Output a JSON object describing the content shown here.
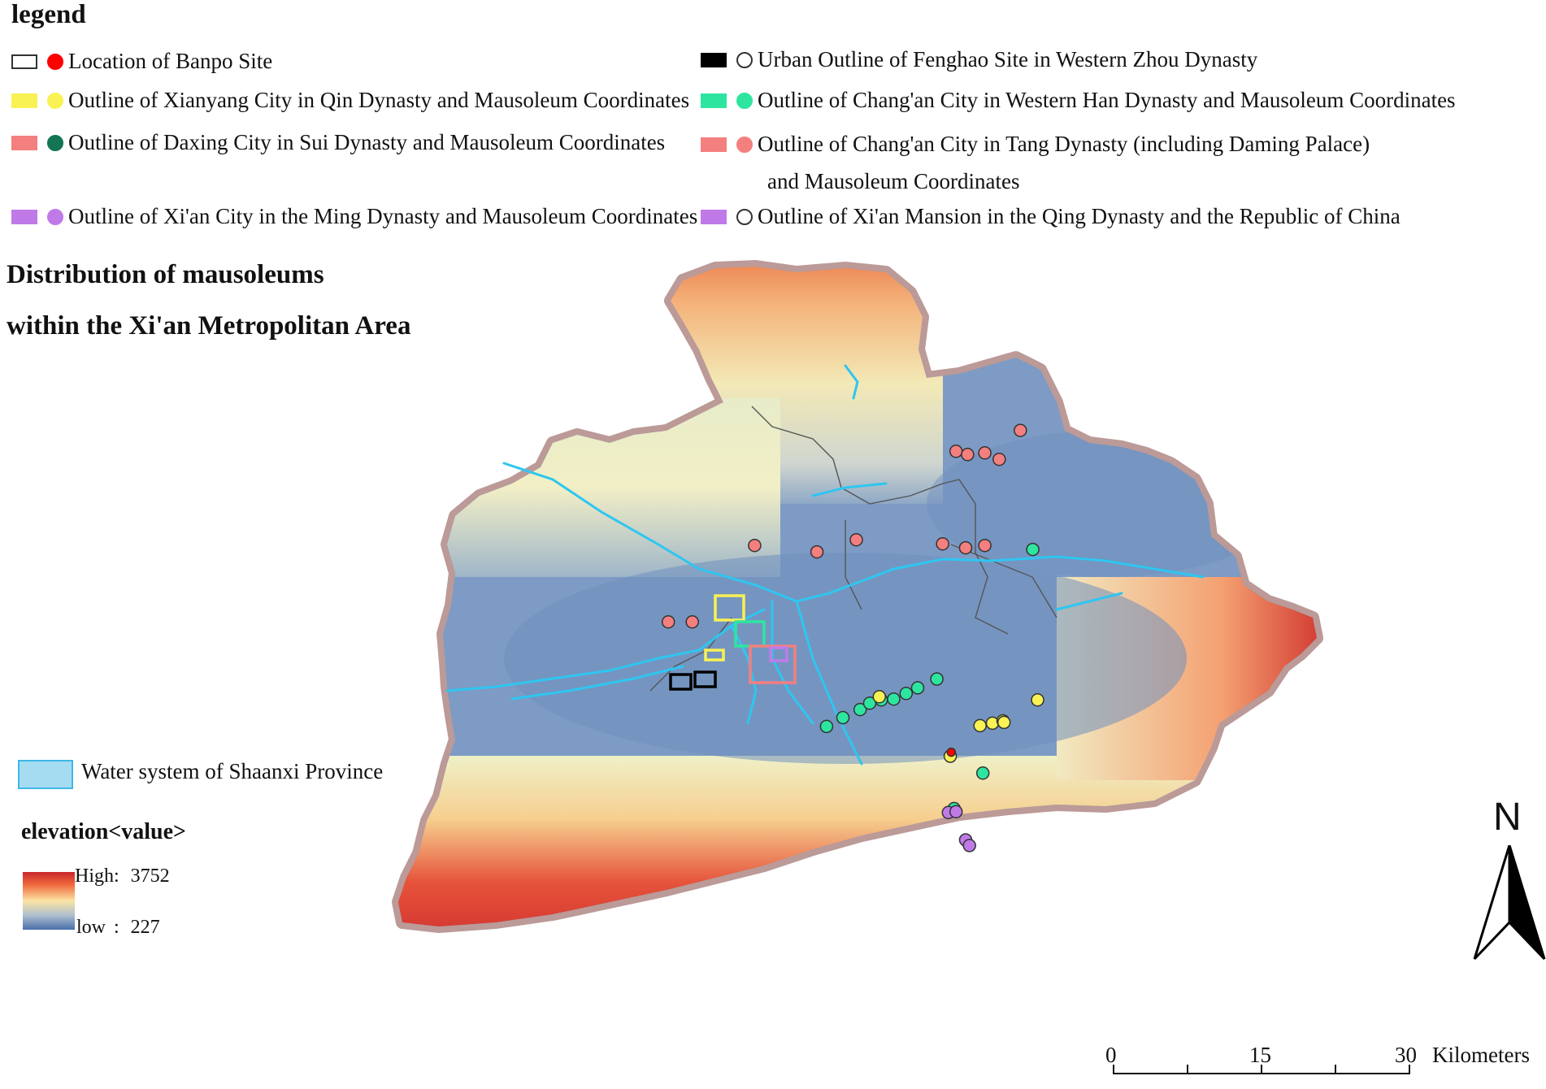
{
  "legend": {
    "title": "legend",
    "items": [
      {
        "label": "Location of Banpo Site",
        "rect_fill": "#ffffff",
        "rect_border": "#333333",
        "dot_fill": "#ff0000",
        "dot_border": "#ff0000"
      },
      {
        "label": "Urban Outline of Fenghao Site in Western Zhou Dynasty",
        "rect_fill": "#000000",
        "rect_border": "#000000",
        "dot_fill": "#ffffff",
        "dot_border": "#333333"
      },
      {
        "label": "Outline of Xianyang City in Qin Dynasty and Mausoleum Coordinates",
        "rect_fill": "#f8f254",
        "rect_border": "#f8f254",
        "dot_fill": "#f8f254",
        "dot_border": "#f8f254"
      },
      {
        "label": "Outline of Chang'an City in Western Han Dynasty and Mausoleum Coordinates",
        "rect_fill": "#2ee5a0",
        "rect_border": "#2ee5a0",
        "dot_fill": "#2ee5a0",
        "dot_border": "#2ee5a0"
      },
      {
        "label": "Outline of Daxing City in Sui Dynasty and Mausoleum Coordinates",
        "rect_fill": "#f47f7f",
        "rect_border": "#f47f7f",
        "dot_fill": "#137553",
        "dot_border": "#137553"
      },
      {
        "label": "Outline of Chang'an City in Tang Dynasty (including Daming Palace)",
        "label2": "and Mausoleum Coordinates",
        "rect_fill": "#f47f7f",
        "rect_border": "#f47f7f",
        "dot_fill": "#f47f7f",
        "dot_border": "#f47f7f"
      },
      {
        "label": "Outline of Xi'an City in the Ming Dynasty and Mausoleum Coordinates",
        "rect_fill": "#c07ae8",
        "rect_border": "#c07ae8",
        "dot_fill": "#c07ae8",
        "dot_border": "#c07ae8"
      },
      {
        "label": "Outline of Xi'an Mansion in the Qing Dynasty and the Republic of China",
        "rect_fill": "#c07ae8",
        "rect_border": "#c07ae8",
        "dot_fill": "#ffffff",
        "dot_border": "#333333"
      }
    ]
  },
  "map_title": {
    "line1": "Distribution of mausoleums",
    "line2": "within the Xi'an Metropolitan Area"
  },
  "water": {
    "label": "Water system of Shaanxi Province",
    "color": "#3fb7e8"
  },
  "elevation": {
    "title": "elevation<value>",
    "high_label": "High",
    "high_value": "3752",
    "low_label": "low",
    "low_value": "227",
    "separator": ":"
  },
  "north_arrow": {
    "label": "N"
  },
  "scale_bar": {
    "ticks": [
      "0",
      "15",
      "30"
    ],
    "unit": "Kilometers"
  },
  "colors": {
    "qin": "#f8f254",
    "western_han": "#2ee5a0",
    "tang": "#f47f7f",
    "ming": "#c07ae8",
    "fenghao": "#000000",
    "banpo": "#ff0000",
    "river": "#2ec6f0",
    "boundary_halo": "#bb9a98"
  },
  "mausoleums": {
    "tang": [
      [
        0.29,
        0.48
      ],
      [
        0.315,
        0.48
      ],
      [
        0.445,
        0.393
      ],
      [
        0.38,
        0.385
      ],
      [
        0.486,
        0.378
      ],
      [
        0.576,
        0.383
      ],
      [
        0.6,
        0.388
      ],
      [
        0.62,
        0.385
      ],
      [
        0.59,
        0.268
      ],
      [
        0.602,
        0.272
      ],
      [
        0.62,
        0.27
      ],
      [
        0.635,
        0.278
      ],
      [
        0.657,
        0.242
      ]
    ],
    "western_han": [
      [
        0.455,
        0.61
      ],
      [
        0.472,
        0.599
      ],
      [
        0.49,
        0.589
      ],
      [
        0.5,
        0.581
      ],
      [
        0.512,
        0.577
      ],
      [
        0.525,
        0.576
      ],
      [
        0.538,
        0.569
      ],
      [
        0.55,
        0.562
      ],
      [
        0.57,
        0.551
      ],
      [
        0.67,
        0.39
      ],
      [
        0.618,
        0.668
      ],
      [
        0.588,
        0.712
      ]
    ],
    "qin": [
      [
        0.51,
        0.573
      ],
      [
        0.615,
        0.609
      ],
      [
        0.628,
        0.606
      ],
      [
        0.639,
        0.603
      ],
      [
        0.64,
        0.605
      ],
      [
        0.675,
        0.577
      ],
      [
        0.584,
        0.647
      ]
    ],
    "ming": [
      [
        0.582,
        0.717
      ],
      [
        0.59,
        0.716
      ],
      [
        0.6,
        0.751
      ],
      [
        0.604,
        0.758
      ]
    ],
    "banpo": [
      [
        0.585,
        0.642
      ]
    ]
  }
}
